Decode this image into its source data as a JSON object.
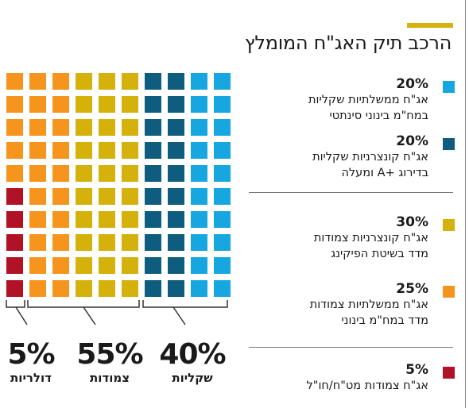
{
  "title": "הרכב תיק האג\"ח המומלץ",
  "colors": {
    "accent": "#D6B20C",
    "light_blue": "#16A7E1",
    "dark_blue": "#0E5C7E",
    "mustard": "#D5B10C",
    "orange": "#F5951E",
    "red": "#B11226"
  },
  "chart_data": {
    "type": "waffle",
    "units": "%",
    "grid": {
      "rows": 10,
      "cols": 10
    },
    "categories": [
      {
        "percent": "20%",
        "value": 20,
        "color": "#16A7E1",
        "label_line1": "אג\"ח ממשלתיות שקליות",
        "label_line2": "במח\"מ בינוני סינתטי",
        "group": "שקליות"
      },
      {
        "percent": "20%",
        "value": 20,
        "color": "#0E5C7E",
        "label_line1": "אג\"ח קונצרניות שקליות",
        "label_line2": "בדירוג +A ומעלה",
        "group": "שקליות"
      },
      {
        "percent": "30%",
        "value": 30,
        "color": "#D5B10C",
        "label_line1": "אג\"ח קונצרניות צמודות",
        "label_line2": "מדד בשיטת הפיקינג",
        "group": "צמודות"
      },
      {
        "percent": "25%",
        "value": 25,
        "color": "#F5951E",
        "label_line1": "אג\"ח ממשלתיות צמודות",
        "label_line2": "מדד במח\"מ בינוני",
        "group": "צמודות"
      },
      {
        "percent": "5%",
        "value": 5,
        "color": "#B11226",
        "label_line1": "אג\"ח צמודות מט\"ח/חו\"ל",
        "label_line2": "",
        "group": "דולריות"
      }
    ],
    "totals": [
      {
        "percent": "40%",
        "label": "שקליות"
      },
      {
        "percent": "55%",
        "label": "צמודות"
      },
      {
        "percent": "5%",
        "label": "דולריות"
      }
    ]
  }
}
